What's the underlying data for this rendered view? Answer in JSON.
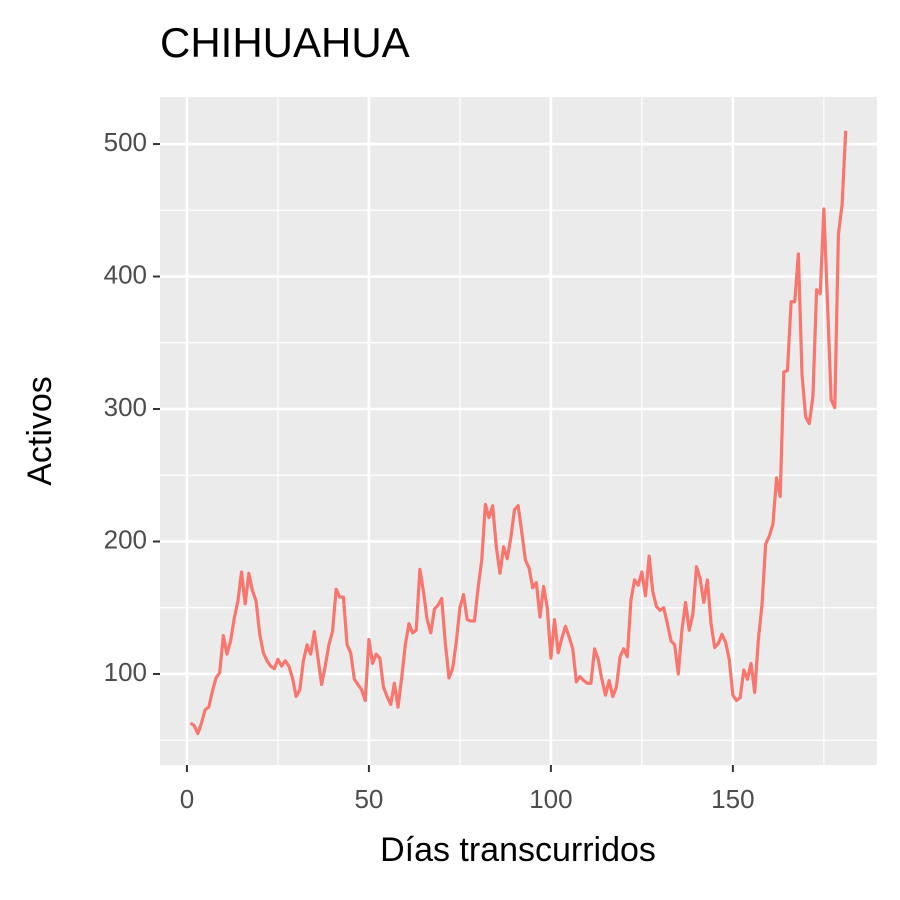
{
  "chart_data": {
    "type": "line",
    "title": "CHIHUAHUA",
    "x_label": "Días transcurridos",
    "y_label": "Activos",
    "x": [
      1,
      2,
      3,
      4,
      5,
      6,
      7,
      8,
      9,
      10,
      11,
      12,
      13,
      14,
      15,
      16,
      17,
      18,
      19,
      20,
      21,
      22,
      23,
      24,
      25,
      26,
      27,
      28,
      29,
      30,
      31,
      32,
      33,
      34,
      35,
      36,
      37,
      38,
      39,
      40,
      41,
      42,
      43,
      44,
      45,
      46,
      47,
      48,
      49,
      50,
      51,
      52,
      53,
      54,
      55,
      56,
      57,
      58,
      59,
      60,
      61,
      62,
      63,
      64,
      65,
      66,
      67,
      68,
      69,
      70,
      71,
      72,
      73,
      74,
      75,
      76,
      77,
      78,
      79,
      80,
      81,
      82,
      83,
      84,
      85,
      86,
      87,
      88,
      89,
      90,
      91,
      92,
      93,
      94,
      95,
      96,
      97,
      98,
      99,
      100,
      101,
      102,
      103,
      104,
      105,
      106,
      107,
      108,
      109,
      110,
      111,
      112,
      113,
      114,
      115,
      116,
      117,
      118,
      119,
      120,
      121,
      122,
      123,
      124,
      125,
      126,
      127,
      128,
      129,
      130,
      131,
      132,
      133,
      134,
      135,
      136,
      137,
      138,
      139,
      140,
      141,
      142,
      143,
      144,
      145,
      146,
      147,
      148,
      149,
      150,
      151,
      152,
      153,
      154,
      155,
      156,
      157,
      158,
      159,
      160,
      161,
      162,
      163,
      164,
      165,
      166,
      167,
      168,
      169,
      170,
      171,
      172,
      173,
      174,
      175,
      176,
      177,
      178,
      179,
      180,
      181
    ],
    "series": [
      {
        "name": "Activos",
        "color": "#F8766D",
        "values": [
          63,
          61,
          55,
          63,
          73,
          75,
          87,
          97,
          101,
          129,
          115,
          125,
          142,
          155,
          177,
          153,
          176,
          163,
          155,
          130,
          116,
          110,
          106,
          104,
          111,
          106,
          110,
          106,
          97,
          83,
          88,
          110,
          122,
          115,
          132,
          112,
          92,
          106,
          122,
          132,
          164,
          158,
          158,
          122,
          116,
          96,
          92,
          88,
          80,
          126,
          108,
          115,
          112,
          90,
          83,
          77,
          93,
          75,
          97,
          122,
          138,
          131,
          133,
          179,
          162,
          141,
          131,
          149,
          152,
          157,
          123,
          97,
          104,
          124,
          150,
          160,
          141,
          140,
          140,
          165,
          186,
          228,
          218,
          227,
          196,
          176,
          196,
          187,
          203,
          224,
          227,
          207,
          186,
          180,
          165,
          169,
          143,
          166,
          150,
          112,
          141,
          116,
          127,
          136,
          128,
          119,
          94,
          98,
          95,
          93,
          93,
          119,
          111,
          96,
          84,
          95,
          83,
          90,
          113,
          119,
          113,
          156,
          171,
          167,
          177,
          159,
          189,
          162,
          151,
          148,
          150,
          138,
          125,
          122,
          100,
          133,
          154,
          133,
          145,
          181,
          172,
          154,
          171,
          138,
          120,
          123,
          130,
          124,
          111,
          84,
          80,
          82,
          103,
          96,
          108,
          86,
          126,
          152,
          198,
          204,
          213,
          248,
          234,
          328,
          329,
          381,
          381,
          417,
          326,
          294,
          289,
          310,
          390,
          387,
          451,
          380,
          307,
          301,
          432,
          454,
          510
        ]
      }
    ],
    "xlim": [
      -7.4,
      189.6
    ],
    "ylim": [
      31.3,
      535.5
    ],
    "xticks": [
      0,
      50,
      100,
      150
    ],
    "yticks": [
      100,
      200,
      300,
      400,
      500
    ],
    "x_minor_ticks": [
      25,
      75,
      125,
      175
    ],
    "y_minor_ticks": [
      50,
      150,
      250,
      350,
      450
    ],
    "grid": true
  }
}
